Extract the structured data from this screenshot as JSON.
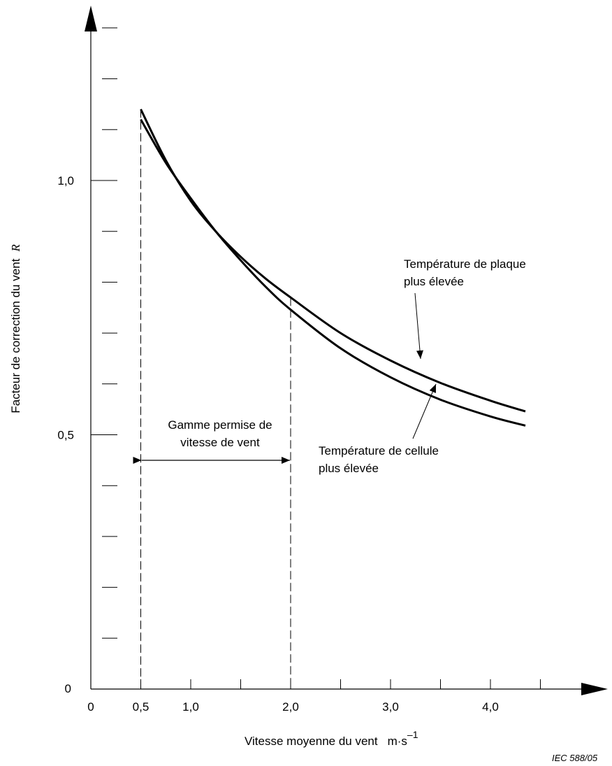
{
  "chart_data": {
    "type": "line",
    "xlabel": "Vitesse moyenne du vent",
    "xlabel_unit": "m·s",
    "xlabel_unit_exp": "–1",
    "ylabel": "Facteur de correction du vent",
    "ylabel_symbol": "R",
    "x_ticks": [
      0,
      0.5,
      1.0,
      2.0,
      3.0,
      4.0
    ],
    "x_tick_labels": [
      "0",
      "0,5",
      "1,0",
      "2,0",
      "3,0",
      "4,0"
    ],
    "y_ticks": [
      0,
      0.5,
      1.0
    ],
    "y_tick_labels": [
      "0",
      "0,5",
      "1,0"
    ],
    "y_minor_step": 0.1,
    "x_minor_step": 0.5,
    "xlim": [
      0,
      4.8
    ],
    "ylim": [
      0,
      1.3
    ],
    "series": [
      {
        "name": "Température de plaque plus élevée",
        "x": [
          0.5,
          0.75,
          1.0,
          1.25,
          1.5,
          1.75,
          2.0,
          2.5,
          3.0,
          3.5,
          4.0,
          4.35
        ],
        "y": [
          1.14,
          1.04,
          0.96,
          0.9,
          0.85,
          0.807,
          0.77,
          0.7,
          0.646,
          0.602,
          0.567,
          0.546
        ]
      },
      {
        "name": "Température de cellule plus élevée",
        "x": [
          0.5,
          0.75,
          1.0,
          1.25,
          1.5,
          1.75,
          2.0,
          2.5,
          3.0,
          3.5,
          4.0,
          4.35
        ],
        "y": [
          1.12,
          1.035,
          0.965,
          0.9,
          0.843,
          0.791,
          0.746,
          0.67,
          0.613,
          0.569,
          0.536,
          0.518
        ]
      }
    ],
    "range": {
      "from": 0.5,
      "to": 2.0,
      "label_lines": [
        "Gamme permise de",
        "vitesse de vent"
      ]
    },
    "annotations": [
      {
        "series": 0,
        "lines": [
          "Température de plaque",
          "plus élevée"
        ]
      },
      {
        "series": 1,
        "lines": [
          "Température de cellule",
          "plus élevée"
        ]
      }
    ],
    "footer": "IEC 588/05"
  }
}
